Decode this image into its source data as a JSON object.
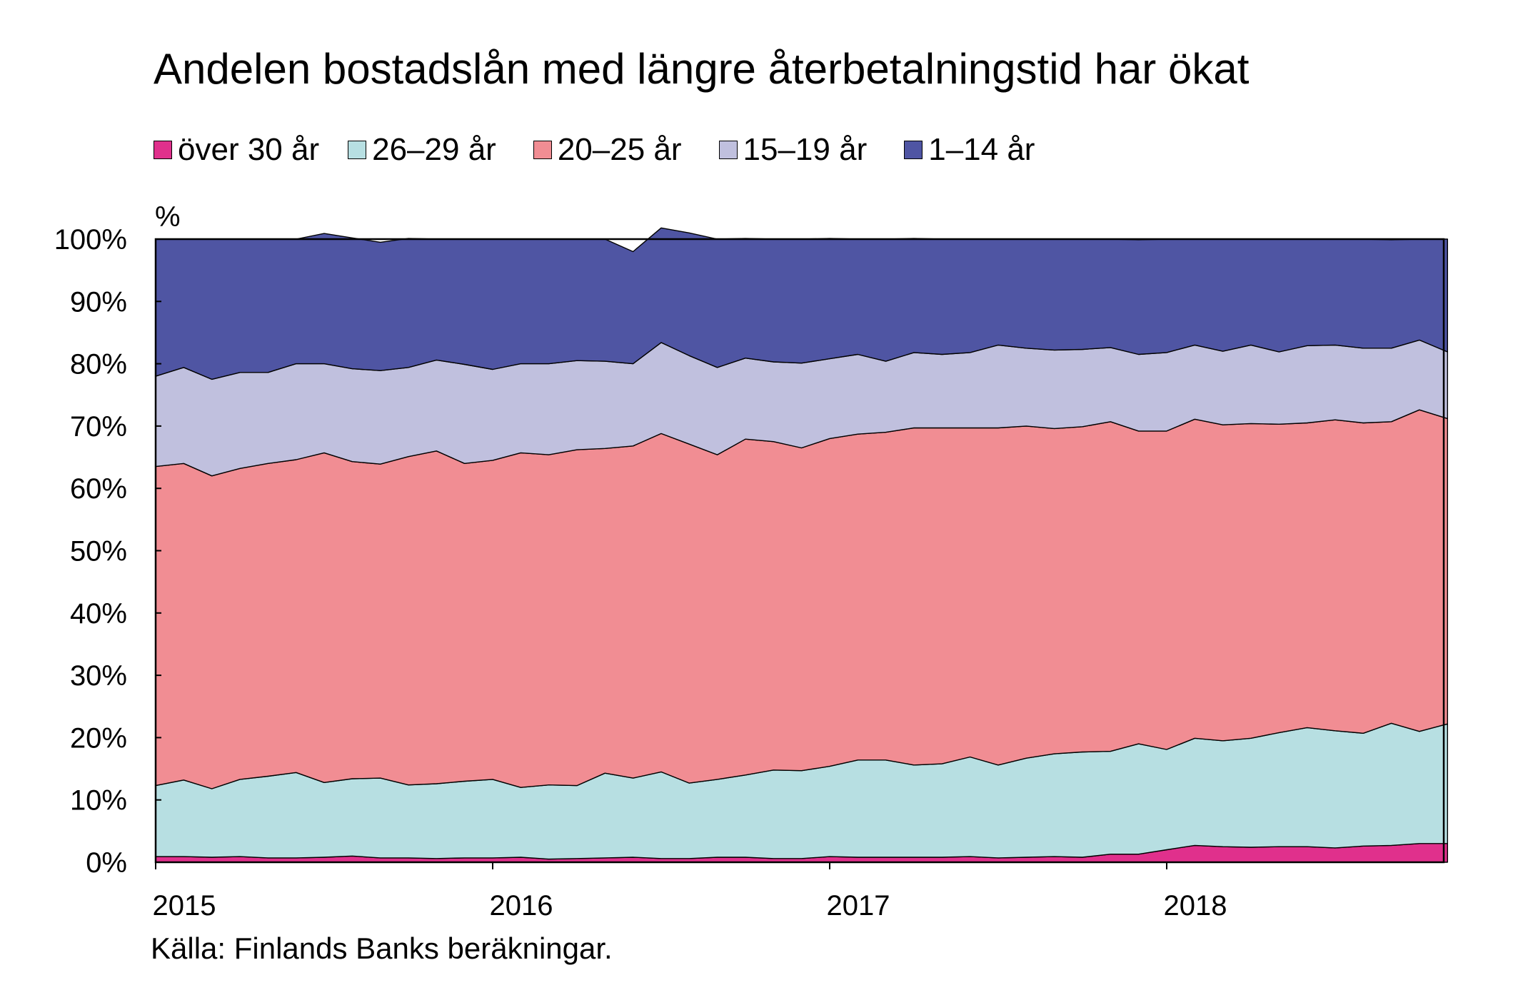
{
  "title": "Andelen bostadslån med längre återbetalningstid har ökat",
  "unit_label": "%",
  "source": "Källa: Finlands Banks beräkningar.",
  "chart_data": {
    "type": "area",
    "stacked": true,
    "title": "Andelen bostadslån med längre återbetalningstid har ökat",
    "ylabel": "%",
    "ylim": [
      0,
      100
    ],
    "yticks": [
      "0%",
      "10%",
      "20%",
      "30%",
      "40%",
      "50%",
      "60%",
      "70%",
      "80%",
      "90%",
      "100%"
    ],
    "xticks": [
      "2015",
      "2016",
      "2017",
      "2018"
    ],
    "x_start": 2015.0,
    "x_step": 0.08333,
    "legend_position": "top",
    "series": [
      {
        "name": "över 30 år",
        "color": "#e0308c",
        "values": [
          0.9,
          0.9,
          0.8,
          0.9,
          0.7,
          0.7,
          0.8,
          1.0,
          0.7,
          0.7,
          0.6,
          0.7,
          0.7,
          0.8,
          0.5,
          0.6,
          0.7,
          0.8,
          0.6,
          0.6,
          0.8,
          0.8,
          0.6,
          0.6,
          0.9,
          0.8,
          0.8,
          0.8,
          0.8,
          0.9,
          0.7,
          0.8,
          0.9,
          0.8,
          1.3,
          1.3,
          2.0,
          2.7,
          2.5,
          2.4,
          2.5,
          2.5,
          2.3,
          2.6,
          2.7,
          3.0,
          3.0
        ]
      },
      {
        "name": "26–29 år",
        "color": "#b7dfe2",
        "values": [
          11.4,
          12.3,
          11.0,
          12.4,
          13.1,
          13.7,
          12.0,
          12.4,
          12.8,
          11.7,
          12.0,
          12.3,
          12.6,
          11.2,
          11.9,
          11.7,
          13.6,
          12.7,
          13.9,
          12.1,
          12.5,
          13.2,
          14.2,
          14.1,
          14.5,
          15.6,
          15.6,
          14.8,
          15.0,
          16.0,
          14.9,
          15.9,
          16.5,
          16.9,
          16.5,
          17.7,
          16.1,
          17.2,
          17.0,
          17.5,
          18.3,
          19.1,
          18.8,
          18.1,
          19.6,
          18.0,
          19.2
        ]
      },
      {
        "name": "20–25 år",
        "color": "#f18d93",
        "values": [
          51.2,
          50.8,
          50.2,
          49.9,
          50.2,
          50.2,
          52.9,
          50.9,
          50.4,
          52.7,
          53.4,
          51.0,
          51.2,
          53.7,
          53.0,
          53.9,
          52.1,
          53.3,
          54.3,
          54.4,
          52.1,
          53.9,
          52.7,
          51.8,
          52.6,
          52.3,
          52.6,
          54.1,
          53.9,
          52.8,
          54.1,
          53.3,
          52.2,
          52.2,
          52.9,
          50.2,
          51.1,
          51.2,
          50.7,
          50.5,
          49.5,
          48.9,
          49.9,
          49.8,
          48.4,
          51.6,
          49.0
        ]
      },
      {
        "name": "15–19 år",
        "color": "#c0c0de",
        "values": [
          14.5,
          15.4,
          15.5,
          15.4,
          14.6,
          15.4,
          14.3,
          14.9,
          15.0,
          14.3,
          14.6,
          15.9,
          14.6,
          14.3,
          14.6,
          14.3,
          14.0,
          13.2,
          14.6,
          14.2,
          14.0,
          13.0,
          12.8,
          13.6,
          12.8,
          12.8,
          11.4,
          12.1,
          11.8,
          12.1,
          13.3,
          12.5,
          12.6,
          12.4,
          11.9,
          12.3,
          12.6,
          11.9,
          11.8,
          12.6,
          11.6,
          12.4,
          12.0,
          12.0,
          11.8,
          11.2,
          10.7
        ]
      },
      {
        "name": "1–14 år",
        "color": "#4f55a3",
        "values": [
          22.0,
          20.6,
          22.5,
          21.4,
          21.4,
          20.0,
          20.9,
          21.0,
          20.6,
          20.7,
          19.4,
          20.1,
          20.9,
          20.0,
          20.0,
          19.5,
          19.6,
          18.0,
          18.4,
          19.7,
          20.6,
          19.2,
          19.7,
          19.9,
          19.3,
          18.5,
          19.6,
          18.3,
          18.5,
          18.2,
          17.0,
          17.5,
          17.8,
          17.7,
          17.4,
          18.4,
          18.2,
          17.0,
          18.0,
          17.0,
          18.1,
          17.1,
          17.0,
          17.5,
          17.4,
          16.2,
          18.1
        ]
      }
    ]
  }
}
